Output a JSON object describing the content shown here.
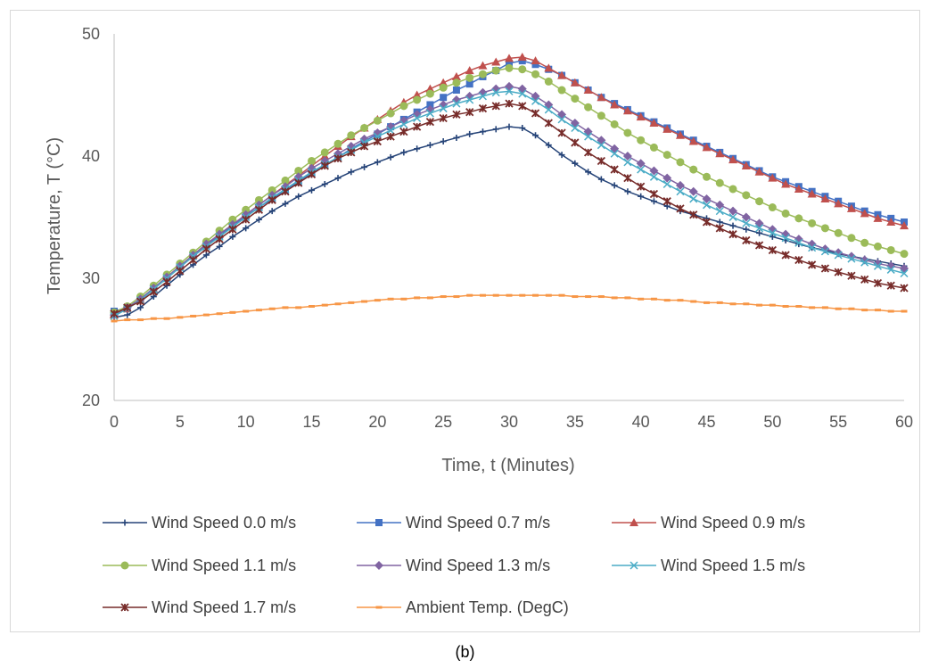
{
  "caption": "(b)",
  "chart_data": {
    "type": "line",
    "title": "",
    "xlabel": "Time, t (Minutes)",
    "ylabel": "Temperature, T (°C)",
    "xlim": [
      0,
      60
    ],
    "ylim": [
      20,
      50
    ],
    "x_ticks": [
      0,
      5,
      10,
      15,
      20,
      25,
      30,
      35,
      40,
      45,
      50,
      55,
      60
    ],
    "y_ticks": [
      20,
      30,
      40,
      50
    ],
    "grid": false,
    "legend_position": "bottom",
    "x": [
      0,
      1,
      2,
      3,
      4,
      5,
      6,
      7,
      8,
      9,
      10,
      11,
      12,
      13,
      14,
      15,
      16,
      17,
      18,
      19,
      20,
      21,
      22,
      23,
      24,
      25,
      26,
      27,
      28,
      29,
      30,
      31,
      32,
      33,
      34,
      35,
      36,
      37,
      38,
      39,
      40,
      41,
      42,
      43,
      44,
      45,
      46,
      47,
      48,
      49,
      50,
      51,
      52,
      53,
      54,
      55,
      56,
      57,
      58,
      59,
      60
    ],
    "series": [
      {
        "name": "Wind Speed 0.0 m/s",
        "color": "#264478",
        "marker": "plus",
        "values": [
          26.8,
          27.0,
          27.6,
          28.5,
          29.4,
          30.3,
          31.1,
          31.9,
          32.6,
          33.4,
          34.1,
          34.8,
          35.5,
          36.1,
          36.7,
          37.2,
          37.7,
          38.2,
          38.7,
          39.1,
          39.5,
          39.9,
          40.3,
          40.6,
          40.9,
          41.2,
          41.5,
          41.8,
          42.0,
          42.2,
          42.4,
          42.3,
          41.7,
          40.9,
          40.1,
          39.4,
          38.7,
          38.1,
          37.6,
          37.1,
          36.7,
          36.3,
          35.9,
          35.5,
          35.2,
          34.9,
          34.6,
          34.3,
          34.0,
          33.7,
          33.4,
          33.1,
          32.8,
          32.5,
          32.3,
          32.0,
          31.8,
          31.6,
          31.4,
          31.2,
          31.0
        ]
      },
      {
        "name": "Wind Speed 0.7 m/s",
        "color": "#4472C4",
        "marker": "square",
        "values": [
          27.3,
          27.6,
          28.3,
          29.2,
          30.0,
          30.9,
          31.8,
          32.7,
          33.5,
          34.3,
          35.1,
          35.8,
          36.5,
          37.2,
          37.9,
          38.6,
          39.3,
          39.9,
          40.6,
          41.2,
          41.8,
          42.4,
          43.0,
          43.6,
          44.2,
          44.8,
          45.4,
          45.9,
          46.5,
          47.0,
          47.6,
          47.8,
          47.5,
          47.1,
          46.6,
          46.0,
          45.4,
          44.8,
          44.3,
          43.8,
          43.3,
          42.8,
          42.3,
          41.8,
          41.3,
          40.8,
          40.3,
          39.8,
          39.3,
          38.8,
          38.3,
          37.9,
          37.5,
          37.1,
          36.7,
          36.3,
          35.9,
          35.5,
          35.2,
          34.9,
          34.6
        ]
      },
      {
        "name": "Wind Speed 0.9 m/s",
        "color": "#C0504D",
        "marker": "triangle",
        "values": [
          27.0,
          27.5,
          28.2,
          29.1,
          30.1,
          31.0,
          31.9,
          32.8,
          33.6,
          34.4,
          35.2,
          36.0,
          36.8,
          37.6,
          38.4,
          39.2,
          40.0,
          40.8,
          41.6,
          42.3,
          43.0,
          43.7,
          44.4,
          45.0,
          45.5,
          46.0,
          46.5,
          47.0,
          47.4,
          47.7,
          48.0,
          48.1,
          47.8,
          47.2,
          46.6,
          46.0,
          45.4,
          44.8,
          44.2,
          43.7,
          43.2,
          42.7,
          42.2,
          41.7,
          41.2,
          40.7,
          40.2,
          39.7,
          39.2,
          38.7,
          38.2,
          37.7,
          37.3,
          36.9,
          36.5,
          36.1,
          35.7,
          35.3,
          34.9,
          34.6,
          34.3
        ]
      },
      {
        "name": "Wind Speed 1.1 m/s",
        "color": "#9BBB59",
        "marker": "circle",
        "values": [
          27.2,
          27.7,
          28.5,
          29.4,
          30.3,
          31.2,
          32.1,
          33.0,
          33.9,
          34.8,
          35.6,
          36.4,
          37.2,
          38.0,
          38.8,
          39.6,
          40.3,
          41.0,
          41.7,
          42.3,
          42.9,
          43.5,
          44.1,
          44.6,
          45.1,
          45.6,
          46.0,
          46.4,
          46.7,
          47.0,
          47.2,
          47.1,
          46.7,
          46.1,
          45.4,
          44.7,
          44.0,
          43.3,
          42.6,
          41.9,
          41.3,
          40.7,
          40.1,
          39.5,
          38.9,
          38.3,
          37.8,
          37.3,
          36.8,
          36.3,
          35.8,
          35.3,
          34.9,
          34.5,
          34.1,
          33.7,
          33.3,
          32.9,
          32.6,
          32.3,
          32.0
        ]
      },
      {
        "name": "Wind Speed 1.3 m/s",
        "color": "#8064A2",
        "marker": "diamond",
        "values": [
          27.0,
          27.6,
          28.3,
          29.2,
          30.1,
          31.0,
          31.9,
          32.8,
          33.6,
          34.4,
          35.2,
          36.0,
          36.8,
          37.5,
          38.3,
          39.0,
          39.6,
          40.2,
          40.8,
          41.4,
          41.9,
          42.4,
          42.9,
          43.4,
          43.8,
          44.2,
          44.6,
          44.9,
          45.2,
          45.5,
          45.7,
          45.5,
          44.9,
          44.2,
          43.4,
          42.7,
          42.0,
          41.3,
          40.6,
          40.0,
          39.4,
          38.8,
          38.2,
          37.6,
          37.1,
          36.5,
          36.0,
          35.5,
          35.0,
          34.5,
          34.0,
          33.6,
          33.2,
          32.8,
          32.4,
          32.1,
          31.8,
          31.5,
          31.2,
          31.0,
          30.8
        ]
      },
      {
        "name": "Wind Speed 1.5 m/s",
        "color": "#4BACC6",
        "marker": "x",
        "values": [
          26.9,
          27.5,
          28.2,
          29.1,
          30.0,
          30.9,
          31.8,
          32.6,
          33.4,
          34.2,
          35.0,
          35.8,
          36.6,
          37.3,
          38.0,
          38.7,
          39.3,
          39.9,
          40.5,
          41.1,
          41.6,
          42.1,
          42.6,
          43.1,
          43.5,
          43.9,
          44.3,
          44.6,
          44.9,
          45.2,
          45.3,
          45.1,
          44.5,
          43.8,
          43.0,
          42.3,
          41.6,
          40.9,
          40.2,
          39.5,
          38.9,
          38.3,
          37.7,
          37.1,
          36.5,
          36.0,
          35.5,
          35.0,
          34.5,
          34.1,
          33.7,
          33.3,
          32.9,
          32.5,
          32.2,
          31.9,
          31.6,
          31.3,
          31.0,
          30.7,
          30.4
        ]
      },
      {
        "name": "Wind Speed 1.7 m/s",
        "color": "#772C2A",
        "marker": "star",
        "values": [
          27.1,
          27.6,
          28.1,
          28.9,
          29.7,
          30.6,
          31.5,
          32.4,
          33.2,
          34.0,
          34.8,
          35.6,
          36.4,
          37.1,
          37.8,
          38.5,
          39.2,
          39.8,
          40.3,
          40.8,
          41.2,
          41.6,
          42.0,
          42.4,
          42.8,
          43.1,
          43.4,
          43.6,
          43.9,
          44.1,
          44.3,
          44.1,
          43.5,
          42.7,
          41.9,
          41.1,
          40.3,
          39.6,
          38.9,
          38.2,
          37.5,
          36.9,
          36.3,
          35.7,
          35.2,
          34.6,
          34.1,
          33.6,
          33.1,
          32.7,
          32.3,
          31.9,
          31.5,
          31.1,
          30.8,
          30.5,
          30.2,
          29.9,
          29.6,
          29.4,
          29.2
        ]
      },
      {
        "name": "Ambient Temp. (DegC)",
        "color": "#F79646",
        "marker": "dash",
        "values": [
          26.5,
          26.6,
          26.6,
          26.7,
          26.7,
          26.8,
          26.9,
          27.0,
          27.1,
          27.2,
          27.3,
          27.4,
          27.5,
          27.6,
          27.6,
          27.7,
          27.8,
          27.9,
          28.0,
          28.1,
          28.2,
          28.3,
          28.3,
          28.4,
          28.4,
          28.5,
          28.5,
          28.6,
          28.6,
          28.6,
          28.6,
          28.6,
          28.6,
          28.6,
          28.6,
          28.5,
          28.5,
          28.5,
          28.4,
          28.4,
          28.3,
          28.3,
          28.2,
          28.2,
          28.1,
          28.0,
          28.0,
          27.9,
          27.9,
          27.8,
          27.8,
          27.7,
          27.7,
          27.6,
          27.6,
          27.5,
          27.5,
          27.4,
          27.4,
          27.3,
          27.3
        ]
      }
    ]
  }
}
